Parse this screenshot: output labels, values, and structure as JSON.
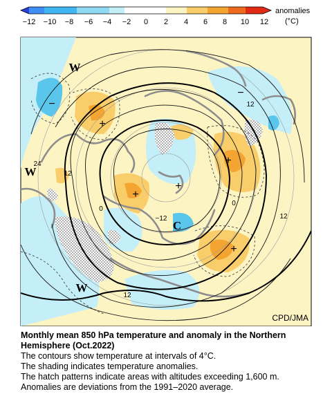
{
  "colorbar": {
    "ticks": [
      "−12",
      "−10",
      "−8",
      "−6",
      "−4",
      "−2",
      "0",
      "2",
      "4",
      "6",
      "8",
      "10",
      "12"
    ],
    "label_line1": "anomalies",
    "label_line2": "(°C)",
    "colors": [
      "#2a3fd6",
      "#3f8ef5",
      "#3fb6f3",
      "#8fd9f3",
      "#c4eef8",
      "#fdf4c4",
      "#f8cd6a",
      "#f3a431",
      "#ee6a1c",
      "#e02a13"
    ]
  },
  "map": {
    "credit": "CPD/JMA",
    "contour_labels": [
      "12",
      "24",
      "12",
      "0",
      "−12",
      "0",
      "12",
      "12"
    ],
    "pressure_letters": [
      "W",
      "W",
      "W",
      "C"
    ],
    "anomaly_signs": [
      "+",
      "+",
      "+",
      "+",
      "+",
      "−",
      "−"
    ],
    "colors": {
      "background": "#fdf4c4",
      "ocean_neutral": "#c4eef8",
      "cold_light": "#8fd9f3",
      "cold": "#5bc6ec",
      "warm_light": "#f8cd6a",
      "warm": "#f3a431",
      "coast": "#8c8c8c",
      "hatch": "#777777"
    }
  },
  "caption": {
    "title_line1": "Monthly mean 850 hPa temperature and anomaly in the Northern",
    "title_line2": "Hemisphere (Oct.2022)",
    "line1": "The contours show temperature at intervals of 4°C.",
    "line2": "The shading indicates temperature anomalies.",
    "line3": "The hatch patterns indicate areas with altitudes exceeding 1,600 m.",
    "line4": "Anomalies are deviations from the 1991–2020 average."
  }
}
